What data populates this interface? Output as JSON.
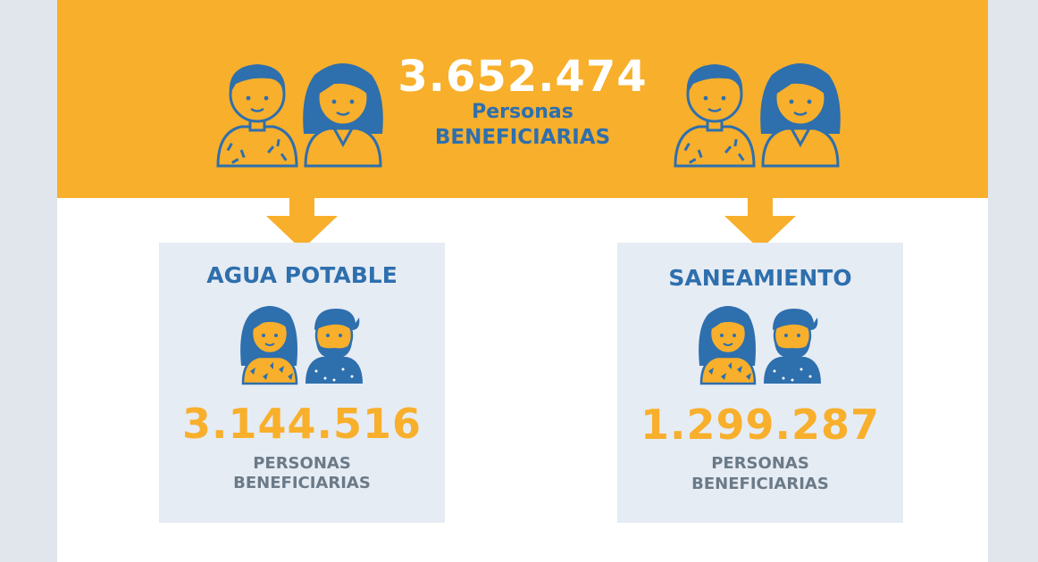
{
  "summary": {
    "total_value": "3.652.474",
    "label_line1": "Personas",
    "label_line2": "BENEFICIARIAS"
  },
  "categories": [
    {
      "title": "AGUA POTABLE",
      "value": "3.144.516",
      "label_line1": "PERSONAS",
      "label_line2": "BENEFICIARIAS"
    },
    {
      "title": "SANEAMIENTO",
      "value": "1.299.287",
      "label_line1": "PERSONAS",
      "label_line2": "BENEFICIARIAS"
    }
  ],
  "colors": {
    "orange": "#f8af2b",
    "blue": "#2e6fae",
    "gray_text": "#6b7a88",
    "card_bg": "#e6ecf3"
  },
  "icons": [
    "man-icon",
    "woman-icon",
    "down-arrow-icon"
  ]
}
